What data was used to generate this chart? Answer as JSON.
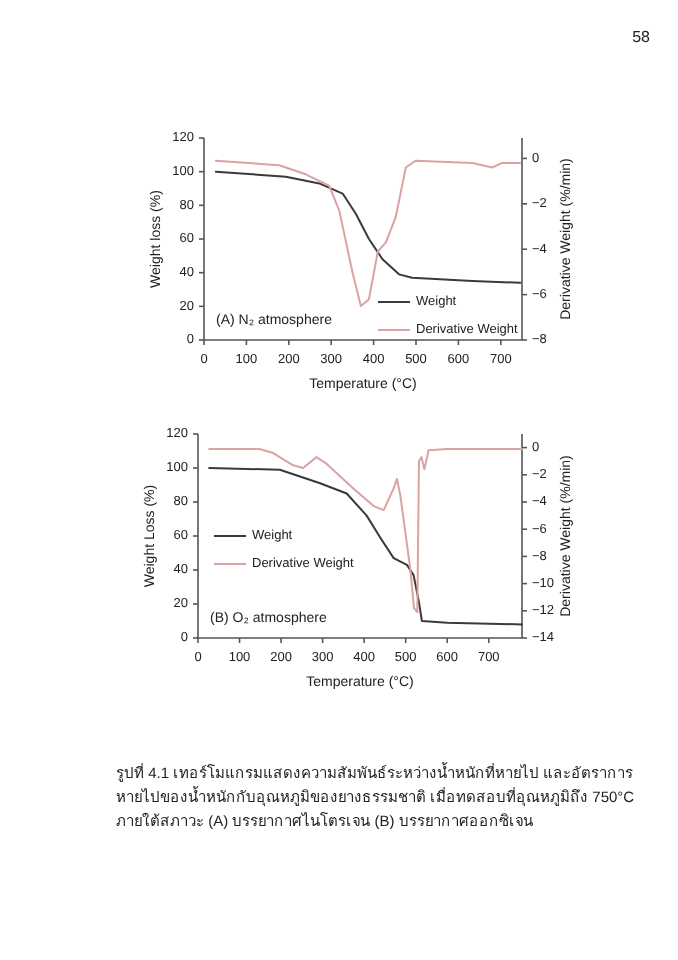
{
  "chart_data": [
    {
      "type": "line",
      "xlabel": "Temperature (°C)",
      "ylabel": "Weight loss (%)",
      "y2label": "Derivative Weight (%/min)",
      "xlim": [
        0,
        750
      ],
      "xticks": [
        0,
        100,
        200,
        300,
        400,
        500,
        600,
        700
      ],
      "ylim": [
        0,
        120
      ],
      "yticks": [
        0,
        20,
        40,
        60,
        80,
        100,
        120
      ],
      "y2lim": [
        -8,
        0.9
      ],
      "y2ticks": [
        0,
        -2,
        -4,
        -6,
        -8
      ],
      "legend": "bottom right",
      "grid": false,
      "series": [
        {
          "name": "Weight",
          "color": "#3a3a3a",
          "x": [
            28,
            193,
            272,
            327,
            358,
            389,
            421,
            460,
            491,
            633,
            746
          ],
          "values": [
            100,
            97,
            93,
            87,
            75,
            60,
            48,
            39,
            37,
            35,
            34
          ]
        },
        {
          "name": "Derivative Weight",
          "color": "#d9a3a3",
          "axis": "y2",
          "x": [
            28,
            177,
            240,
            295,
            319,
            350,
            370,
            389,
            410,
            429,
            452,
            476,
            499,
            633,
            680,
            703,
            746
          ],
          "values": [
            -0.1,
            -0.3,
            -0.7,
            -1.2,
            -2.3,
            -5.0,
            -6.5,
            -6.2,
            -4.1,
            -3.7,
            -2.6,
            -0.4,
            -0.1,
            -0.2,
            -0.4,
            -0.2,
            -0.2
          ]
        }
      ],
      "annotations": [
        "58",
        "(A) N₂ atmosphere"
      ]
    },
    {
      "type": "line",
      "xlabel": "Temperature (°C)",
      "ylabel": "Weight Loss (%)",
      "y2label": "Derivative Weight (%/min)",
      "xlim": [
        0,
        780
      ],
      "xticks": [
        0,
        100,
        200,
        300,
        400,
        500,
        600,
        700
      ],
      "ylim": [
        0,
        120
      ],
      "yticks": [
        0,
        20,
        40,
        60,
        80,
        100,
        120
      ],
      "y2lim": [
        -14,
        1
      ],
      "y2ticks": [
        0,
        -2,
        -4,
        -6,
        -8,
        -10,
        -12,
        -14
      ],
      "legend": "left",
      "grid": false,
      "series": [
        {
          "name": "Weight",
          "color": "#3a3a3a",
          "x": [
            27,
            197,
            294,
            358,
            406,
            439,
            471,
            503,
            519,
            532,
            539,
            600,
            780
          ],
          "values": [
            100,
            99,
            91,
            85,
            72,
            59,
            47,
            43,
            37,
            21,
            10,
            9,
            8
          ]
        },
        {
          "name": "Derivative Weight",
          "color": "#d9a3a3",
          "axis": "y2",
          "x": [
            27,
            148,
            181,
            229,
            253,
            285,
            310,
            374,
            423,
            447,
            471,
            479,
            487,
            511,
            520,
            528,
            532,
            538,
            545,
            555,
            600,
            780
          ],
          "values": [
            -0.1,
            -0.1,
            -0.4,
            -1.3,
            -1.5,
            -0.7,
            -1.2,
            -3.0,
            -4.3,
            -4.6,
            -3.0,
            -2.3,
            -3.5,
            -8.9,
            -11.8,
            -12.1,
            -1.0,
            -0.7,
            -1.6,
            -0.2,
            -0.1,
            -0.1
          ]
        }
      ],
      "annotations": [
        "(B) O₂ atmosphere",
        "รูปที่ 4.1 เทอร์โมแกรมแสดงความสัมพันธ์ระหว่างน้ำหนักที่หายไป และอัตราการหายไปของน้ำหนักกับอุณหภูมิของยางธรรมชาติ เมื่อทดสอบที่อุณหภูมิถึง 750°C ภายใต้สภาวะ (A) บรรยากาศไนโตรเจน (B) บรรยากาศออกซิเจน"
      ]
    }
  ]
}
